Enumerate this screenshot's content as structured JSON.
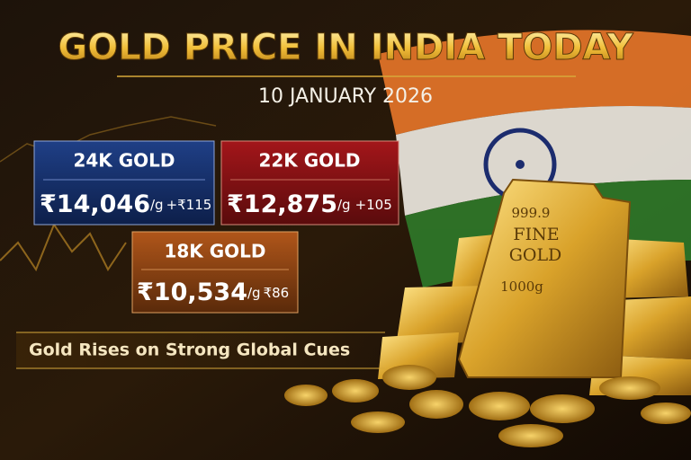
{
  "header": {
    "title": "GOLD PRICE IN INDIA TODAY",
    "date": "10 JANUARY 2026"
  },
  "cards": [
    {
      "label": "24K GOLD",
      "price": "₹14,046",
      "unit": "/g",
      "change": "+₹115"
    },
    {
      "label": "22K GOLD",
      "price": "₹12,875",
      "unit": "/g",
      "change": "+105"
    },
    {
      "label": "18K GOLD",
      "price": "₹10,534",
      "unit": "/g",
      "change": "₹86"
    }
  ],
  "banner": "Gold Rises on Strong Global Cues",
  "bar_stamp": {
    "purity": "999.9",
    "line1": "FINE",
    "line2": "GOLD",
    "weight": "1000g"
  }
}
